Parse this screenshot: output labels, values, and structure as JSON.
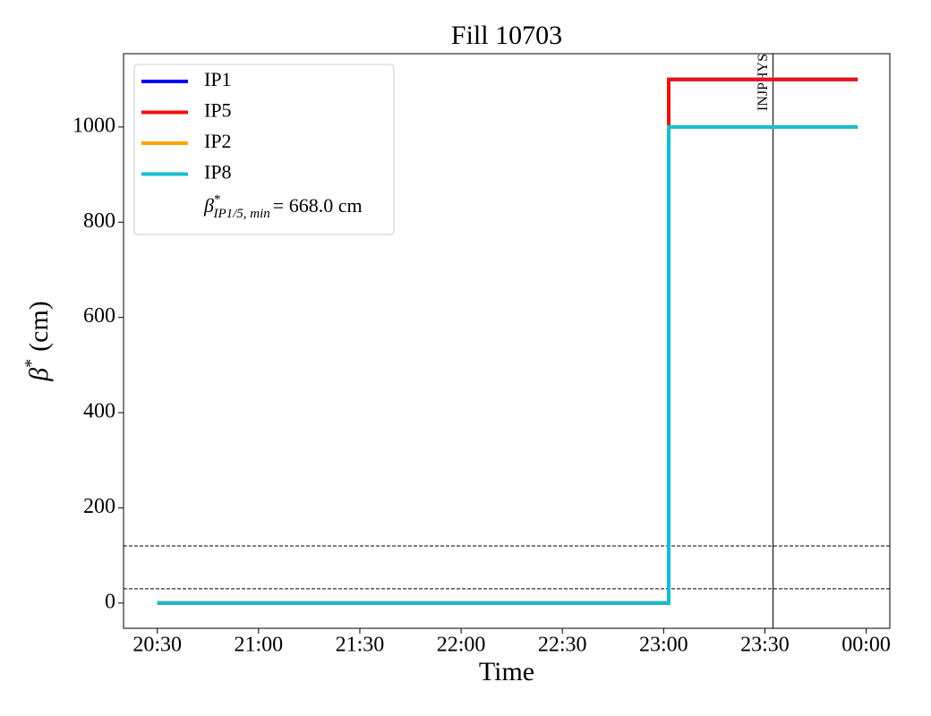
{
  "chart_data": {
    "type": "line",
    "title": "Fill 10703",
    "xlabel": "Time",
    "ylabel": {
      "base": "β",
      "sup": "*",
      "rest": "(cm)"
    },
    "x": [
      1230,
      1381.5,
      1381.5,
      1437.5
    ],
    "series": [
      {
        "name": "IP1",
        "color": "#0000ff",
        "values": [
          0,
          0,
          1100,
          1100
        ]
      },
      {
        "name": "IP5",
        "color": "#ee1111",
        "values": [
          0,
          0,
          1100,
          1100
        ]
      },
      {
        "name": "IP2",
        "color": "#ffa500",
        "values": [
          0,
          0,
          1000,
          1000
        ]
      },
      {
        "name": "IP8",
        "color": "#17becf",
        "values": [
          0,
          0,
          1000,
          1000
        ]
      }
    ],
    "legend_note": {
      "base": "β",
      "sup": "*",
      "sub": "IP1/5, min",
      "rest": "= 668.0 cm"
    },
    "legend": "upper left",
    "xlim": [
      1220,
      1447
    ],
    "xticks": [
      {
        "value": 1230,
        "label": "20:30"
      },
      {
        "value": 1260,
        "label": "21:00"
      },
      {
        "value": 1290,
        "label": "21:30"
      },
      {
        "value": 1320,
        "label": "22:00"
      },
      {
        "value": 1350,
        "label": "22:30"
      },
      {
        "value": 1380,
        "label": "23:00"
      },
      {
        "value": 1410,
        "label": "23:30"
      },
      {
        "value": 1440,
        "label": "00:00"
      }
    ],
    "ylim": [
      -53,
      1154
    ],
    "yticks": [
      0,
      200,
      400,
      600,
      800,
      1000
    ],
    "hlines": [
      120,
      30
    ],
    "vline": {
      "x": 1412.4,
      "label": "INJPHYS"
    }
  }
}
